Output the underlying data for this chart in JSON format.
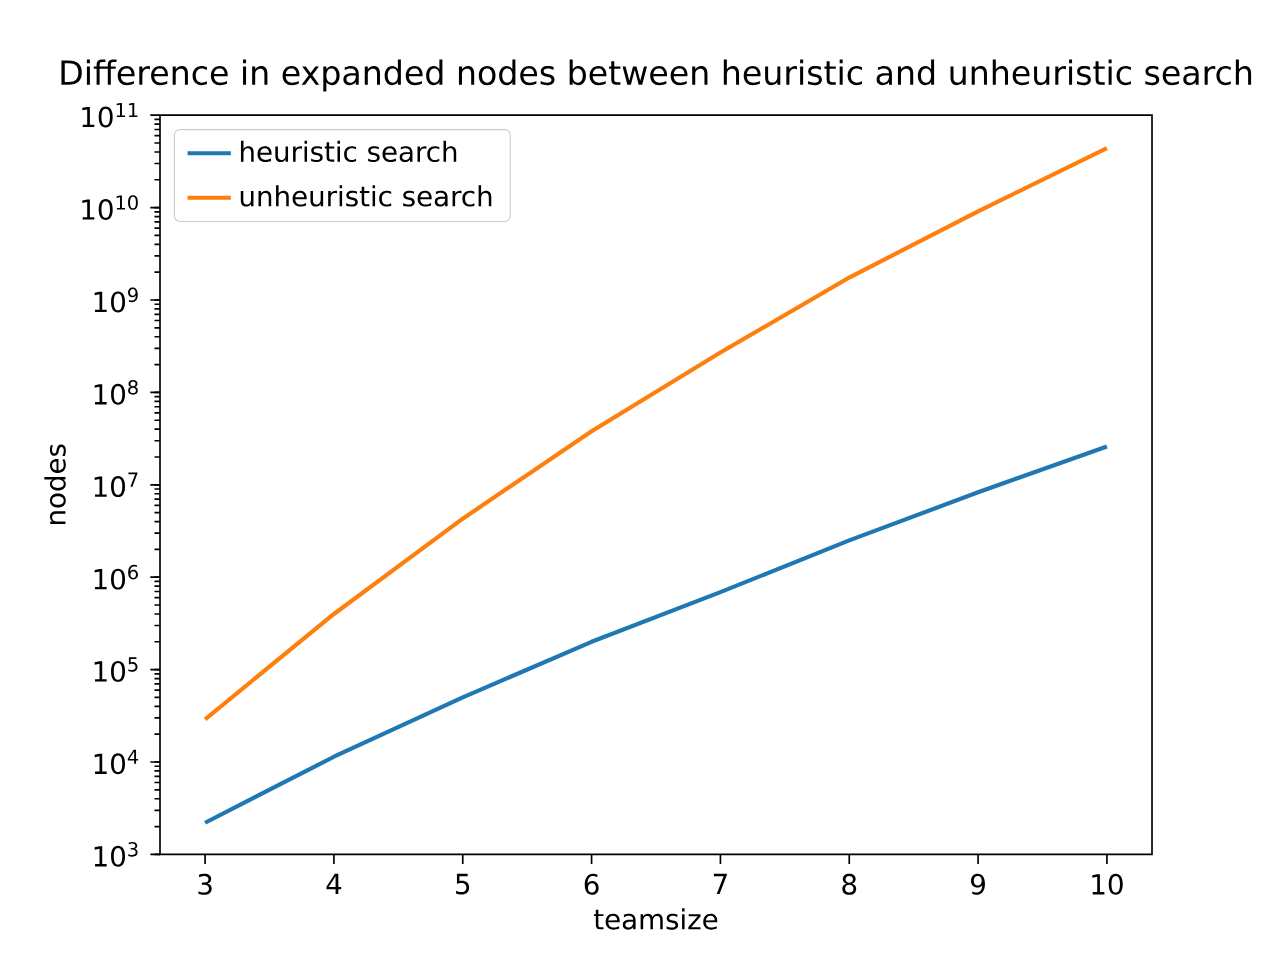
{
  "chart_data": {
    "type": "line",
    "title": "Difference in expanded nodes between heuristic and unheuristic search",
    "xlabel": "teamsize",
    "ylabel": "nodes",
    "x": [
      3,
      4,
      5,
      6,
      7,
      8,
      9,
      10
    ],
    "series": [
      {
        "name": "heuristic search",
        "color": "#1f77b4",
        "values": [
          2200,
          11400,
          50000,
          200000,
          690000,
          2500000,
          8300000,
          26000000
        ]
      },
      {
        "name": "unheuristic search",
        "color": "#ff7f0e",
        "values": [
          29000,
          400000,
          4300000,
          38000000,
          270000000,
          1750000000,
          9100000000,
          44000000000
        ]
      }
    ],
    "xlim": [
      2.65,
      10.35
    ],
    "ylim": [
      1000,
      100000000000
    ],
    "xticks": [
      3,
      4,
      5,
      6,
      7,
      8,
      9,
      10
    ],
    "yticks": [
      {
        "value": 1000,
        "label": "10$^{3}$"
      },
      {
        "value": 10000,
        "label": "10$^{4}$"
      },
      {
        "value": 100000,
        "label": "10$^{5}$"
      },
      {
        "value": 1000000,
        "label": "10$^{6}$"
      },
      {
        "value": 10000000,
        "label": "10$^{7}$"
      },
      {
        "value": 100000000,
        "label": "10$^{8}$"
      },
      {
        "value": 1000000000,
        "label": "10$^{9}$"
      },
      {
        "value": 10000000000,
        "label": "10$^{10}$"
      },
      {
        "value": 100000000000,
        "label": "10$^{11}$"
      }
    ],
    "log": "y",
    "legend": "top left",
    "marker": "none",
    "line_style": "solid"
  }
}
